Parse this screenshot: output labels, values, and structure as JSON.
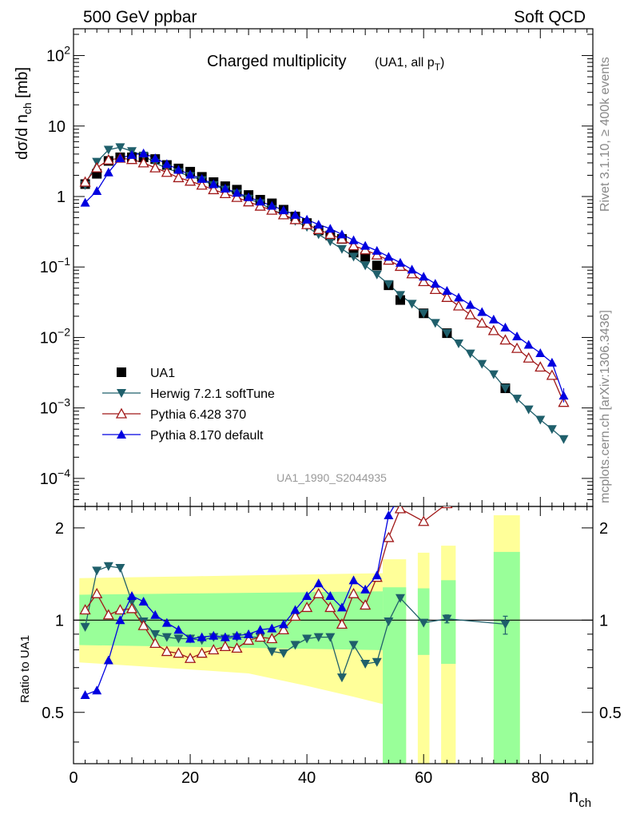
{
  "header": {
    "left": "500 GeV ppbar",
    "right": "Soft QCD"
  },
  "side": {
    "rivet": "Rivet 3.1.10, ≥ 400k events",
    "mcplots": "mcplots.cern.ch [arXiv:1306.3436]"
  },
  "title": {
    "main": "Charged multiplicity",
    "sub": "(UA1, all p",
    "sub_sub": "T",
    "sub_end": ")"
  },
  "watermark": "UA1_1990_S2044935",
  "upper_ylabel": "dσ/d n",
  "upper_ylabel_sub": "ch",
  "upper_ylabel_unit": " [mb]",
  "ratio_ylabel": "Ratio to UA1",
  "xlabel": "n",
  "xlabel_sub": "ch",
  "colors": {
    "data": "#000000",
    "herwig": "#1f5f6b",
    "pythia6": "#a01818",
    "pythia8": "#0000e0",
    "band_inner": "#99ff99",
    "band_outer": "#ffff99"
  },
  "legend": [
    {
      "key": "data",
      "label": "UA1",
      "marker": "square"
    },
    {
      "key": "herwig",
      "label": "Herwig 7.2.1 softTune",
      "marker": "triangle-down"
    },
    {
      "key": "pythia6",
      "label": "Pythia 6.428 370",
      "marker": "triangle-open"
    },
    {
      "key": "pythia8",
      "label": "Pythia 8.170 default",
      "marker": "triangle-up"
    }
  ],
  "chart_data": {
    "type": "line",
    "x_axis": {
      "range": [
        0,
        89
      ],
      "ticks": [
        0,
        20,
        40,
        60,
        80
      ]
    },
    "upper_y_axis": {
      "scale": "log",
      "range": [
        4e-05,
        240
      ],
      "major": [
        {
          "v": 0.0001,
          "base": "10",
          "exp": "−4"
        },
        {
          "v": 0.001,
          "base": "10",
          "exp": "−3"
        },
        {
          "v": 0.01,
          "base": "10",
          "exp": "−2"
        },
        {
          "v": 0.1,
          "base": "10",
          "exp": "−1"
        },
        {
          "v": 1,
          "base": "1",
          "exp": ""
        },
        {
          "v": 10,
          "base": "10",
          "exp": ""
        },
        {
          "v": 100,
          "base": "10",
          "exp": "2"
        }
      ]
    },
    "ratio_y_axis": {
      "scale": "log",
      "range": [
        0.34,
        2.35
      ],
      "ticks": [
        {
          "v": 0.5,
          "label": "0.5"
        },
        {
          "v": 1,
          "label": "1"
        },
        {
          "v": 2,
          "label": "2"
        }
      ]
    },
    "data": {
      "x": [
        2,
        4,
        6,
        8,
        10,
        12,
        14,
        16,
        18,
        20,
        22,
        24,
        26,
        28,
        30,
        32,
        34,
        36,
        38,
        40,
        42,
        44,
        46,
        48,
        50,
        52,
        54,
        56,
        60,
        64,
        74
      ],
      "y": [
        1.5,
        2.1,
        3.2,
        3.6,
        3.6,
        3.6,
        3.4,
        2.8,
        2.5,
        2.25,
        1.9,
        1.6,
        1.4,
        1.25,
        1.05,
        0.9,
        0.8,
        0.65,
        0.52,
        0.42,
        0.33,
        0.28,
        0.25,
        0.16,
        0.14,
        0.105,
        0.055,
        0.034,
        0.022,
        0.0115,
        0.0019
      ],
      "band_inner": [
        [
          1,
          0.28,
          0.18
        ],
        [
          20,
          0.22,
          0.18
        ],
        [
          40,
          0.23,
          0.18
        ],
        [
          48,
          0.3,
          0.2
        ],
        [
          53,
          0.45,
          0.4
        ]
      ],
      "band_outer_gaps": [
        [
          0,
          53
        ],
        [
          53,
          57
        ],
        [
          59,
          61
        ],
        [
          63,
          65.5
        ],
        [
          72,
          76.5
        ]
      ]
    },
    "series": [
      {
        "name": "Herwig 7.2.1 softTune",
        "key": "herwig",
        "x": [
          2,
          4,
          6,
          8,
          10,
          12,
          14,
          16,
          18,
          20,
          22,
          24,
          26,
          28,
          30,
          32,
          34,
          36,
          38,
          40,
          42,
          44,
          46,
          48,
          50,
          52,
          54,
          56,
          58,
          60,
          62,
          64,
          66,
          68,
          70,
          72,
          74,
          76,
          78,
          80,
          82,
          84
        ],
        "y": [
          1.45,
          3.1,
          4.6,
          5.0,
          4.4,
          3.8,
          3.0,
          2.5,
          2.2,
          1.95,
          1.7,
          1.45,
          1.25,
          1.1,
          0.93,
          0.8,
          0.66,
          0.55,
          0.45,
          0.37,
          0.29,
          0.23,
          0.18,
          0.14,
          0.105,
          0.078,
          0.057,
          0.04,
          0.03,
          0.022,
          0.016,
          0.0115,
          0.0082,
          0.0059,
          0.0042,
          0.003,
          0.0019,
          0.00135,
          0.00095,
          0.00068,
          0.0005,
          0.00036
        ],
        "ratio_x": [
          2,
          4,
          6,
          8,
          10,
          12,
          14,
          16,
          18,
          20,
          22,
          24,
          26,
          28,
          30,
          32,
          34,
          36,
          38,
          40,
          42,
          44,
          46,
          48,
          50,
          52,
          54,
          56,
          60,
          64,
          74
        ],
        "ratio": [
          0.95,
          1.45,
          1.5,
          1.48,
          1.15,
          0.99,
          0.9,
          0.88,
          0.87,
          0.87,
          0.86,
          0.88,
          0.87,
          0.88,
          0.88,
          0.88,
          0.79,
          0.78,
          0.83,
          0.87,
          0.88,
          0.88,
          0.65,
          0.83,
          0.72,
          0.73,
          0.99,
          1.18,
          0.98,
          1.01,
          0.97
        ]
      },
      {
        "name": "Pythia 6.428 370",
        "key": "pythia6",
        "x": [
          2,
          4,
          6,
          8,
          10,
          12,
          14,
          16,
          18,
          20,
          22,
          24,
          26,
          28,
          30,
          32,
          34,
          36,
          38,
          40,
          42,
          44,
          46,
          48,
          50,
          52,
          54,
          56,
          58,
          60,
          62,
          64,
          66,
          68,
          70,
          72,
          74,
          76,
          78,
          80,
          82,
          84
        ],
        "y": [
          1.6,
          2.55,
          3.3,
          3.5,
          3.35,
          3.0,
          2.55,
          2.2,
          1.85,
          1.65,
          1.45,
          1.25,
          1.1,
          0.97,
          0.84,
          0.73,
          0.64,
          0.55,
          0.47,
          0.4,
          0.34,
          0.29,
          0.25,
          0.2,
          0.175,
          0.148,
          0.125,
          0.102,
          0.08,
          0.062,
          0.048,
          0.037,
          0.028,
          0.021,
          0.016,
          0.0125,
          0.0092,
          0.007,
          0.0051,
          0.0038,
          0.0029,
          0.0012
        ],
        "ratio_x": [
          2,
          4,
          6,
          8,
          10,
          12,
          14,
          16,
          18,
          20,
          22,
          24,
          26,
          28,
          30,
          32,
          34,
          36,
          38,
          40,
          42,
          44,
          46,
          48,
          50,
          52,
          54,
          56,
          60,
          64
        ],
        "ratio": [
          1.08,
          1.22,
          1.04,
          1.08,
          1.09,
          0.96,
          0.84,
          0.79,
          0.78,
          0.75,
          0.78,
          0.8,
          0.82,
          0.81,
          0.86,
          0.88,
          0.87,
          0.93,
          1.03,
          1.1,
          1.22,
          1.1,
          0.97,
          1.22,
          1.12,
          1.38,
          1.86,
          2.31,
          2.1,
          2.4
        ]
      },
      {
        "name": "Pythia 8.170 default",
        "key": "pythia8",
        "x": [
          2,
          4,
          6,
          8,
          10,
          12,
          14,
          16,
          18,
          20,
          22,
          24,
          26,
          28,
          30,
          32,
          34,
          36,
          38,
          40,
          42,
          44,
          46,
          48,
          50,
          52,
          54,
          56,
          58,
          60,
          62,
          64,
          66,
          68,
          70,
          72,
          74,
          76,
          78,
          80,
          82,
          84
        ],
        "y": [
          0.82,
          1.2,
          2.2,
          3.5,
          3.9,
          4.1,
          3.5,
          2.9,
          2.4,
          2.05,
          1.78,
          1.5,
          1.3,
          1.13,
          0.98,
          0.85,
          0.74,
          0.64,
          0.55,
          0.47,
          0.4,
          0.35,
          0.29,
          0.24,
          0.2,
          0.17,
          0.14,
          0.115,
          0.092,
          0.073,
          0.058,
          0.046,
          0.037,
          0.029,
          0.023,
          0.018,
          0.0139,
          0.0104,
          0.0079,
          0.006,
          0.0044,
          0.0015
        ],
        "ratio_x": [
          2,
          4,
          6,
          8,
          10,
          12,
          14,
          16,
          18,
          20,
          22,
          24,
          26,
          28,
          30,
          32,
          34,
          36,
          38,
          40,
          42,
          44,
          46,
          48,
          50,
          52,
          54,
          56
        ],
        "ratio": [
          0.57,
          0.59,
          0.74,
          1.0,
          1.2,
          1.15,
          1.04,
          0.98,
          0.93,
          0.87,
          0.88,
          0.89,
          0.88,
          0.89,
          0.9,
          0.93,
          0.94,
          0.97,
          1.08,
          1.2,
          1.32,
          1.2,
          1.1,
          1.35,
          1.26,
          1.4,
          2.2,
          2.55
        ]
      }
    ]
  }
}
